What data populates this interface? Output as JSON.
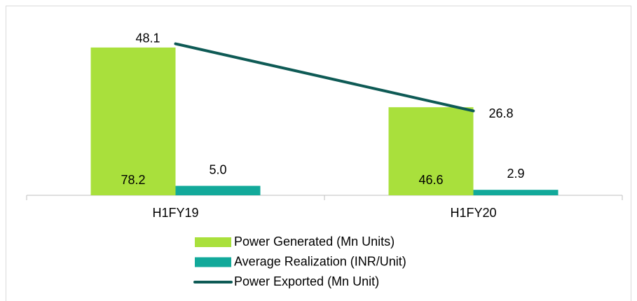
{
  "chart_data": {
    "type": "bar_line",
    "categories": [
      "H1FY19",
      "H1FY20"
    ],
    "series": [
      {
        "name": "Power Generated (Mn Units)",
        "color": "#a9e03c",
        "type": "bar",
        "values": [
          78.2,
          46.6
        ]
      },
      {
        "name": "Average Realization (INR/Unit)",
        "color": "#12a99a",
        "type": "bar",
        "values": [
          5.0,
          2.9
        ],
        "value_labels": [
          "5.0",
          "2.9"
        ]
      },
      {
        "name": "Power Exported (Mn Unit)",
        "color": "#0e5a55",
        "type": "line",
        "axis": "y2",
        "values": [
          48.1,
          26.8
        ]
      }
    ],
    "ylim": [
      0,
      90
    ],
    "y2lim": [
      0,
      54
    ],
    "legend": "bottom"
  }
}
